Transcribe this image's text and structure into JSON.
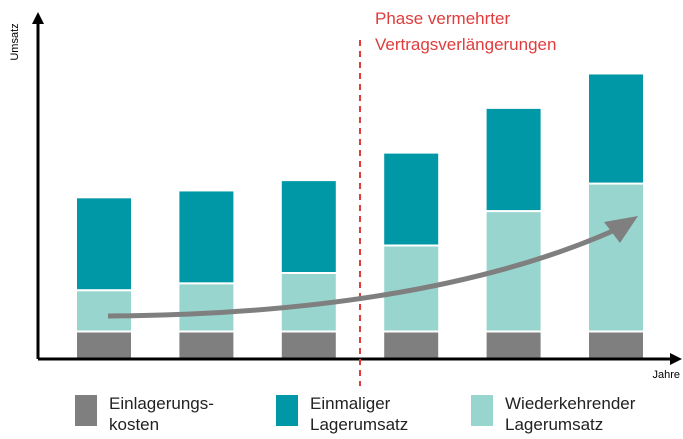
{
  "chart_data": {
    "type": "bar",
    "stacked": true,
    "annotation": "Phase vermehrter\nVertragsverlängerungen",
    "y_label": "Umsatz",
    "x_label": "Jahre",
    "categories": [
      null,
      null,
      null,
      null,
      null,
      null
    ],
    "series": [
      {
        "name": "Einlagerungs-\nkosten",
        "color": "#7f7f7f",
        "values": [
          8,
          8,
          8,
          8,
          8,
          8
        ]
      },
      {
        "name": "Wiederkehrender\nLagerumsatz",
        "color": "#99d5cf",
        "values": [
          12,
          14,
          17,
          25,
          35,
          43
        ]
      },
      {
        "name": "Einmaliger\nLagerumsatz",
        "color": "#0097a7",
        "values": [
          27,
          27,
          27,
          27,
          30,
          32
        ]
      }
    ],
    "ylim": [
      0,
      100
    ]
  }
}
